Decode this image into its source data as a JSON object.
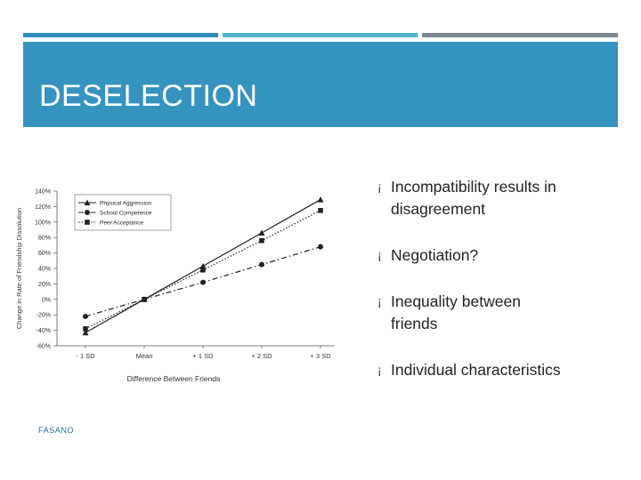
{
  "colors": {
    "bar_blue": "#2f8dbb",
    "bar_light": "#4fb3c8",
    "bar_gray": "#7c8a90",
    "header": "#3594bf"
  },
  "slide": {
    "title": "DESELECTION",
    "footer": "FASANO",
    "bullet_glyph": "¡",
    "bullets": [
      {
        "lines": [
          "Incompatibility results in",
          "disagreement"
        ]
      },
      {
        "lines": [
          "Negotiation?"
        ]
      },
      {
        "lines": [
          "Inequality between",
          "friends"
        ]
      },
      {
        "lines": [
          "Individual characteristics"
        ]
      }
    ]
  },
  "chart_data": {
    "type": "line",
    "ylabel": "Change in Rate of Friendship Dissolution",
    "xlabel": "Difference Between Friends",
    "categories": [
      "- 1 SD",
      "Mean",
      "+ 1 SD",
      "+ 2 SD",
      "+ 3 SD"
    ],
    "ylim": [
      -60,
      140
    ],
    "yticks": [
      "140%",
      "120%",
      "100%",
      "80%",
      "60%",
      "40%",
      "20%",
      "0%",
      "-20%",
      "-40%",
      "-60%"
    ],
    "legend_position": "top-left",
    "series": [
      {
        "name": "Physical Aggression",
        "values": [
          -43,
          0,
          43,
          86,
          129
        ]
      },
      {
        "name": "School Competence",
        "values": [
          -22,
          0,
          22,
          45,
          68
        ]
      },
      {
        "name": "Peer Acceptance",
        "values": [
          -38,
          0,
          38,
          76,
          115
        ]
      }
    ]
  }
}
